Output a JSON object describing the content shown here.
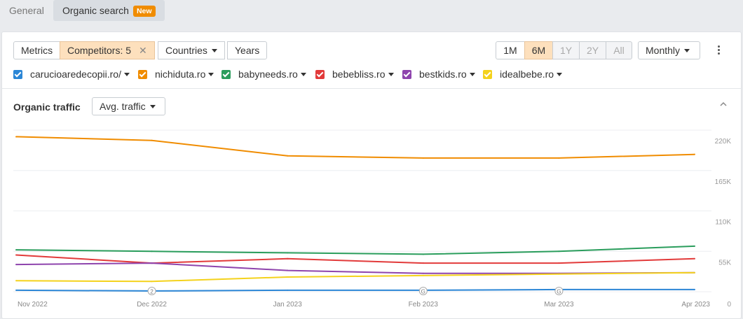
{
  "tabs": {
    "general": "General",
    "organic": "Organic search",
    "new_badge": "New"
  },
  "toolbar": {
    "metrics": "Metrics",
    "competitors": "Competitors: 5",
    "countries": "Countries",
    "years": "Years",
    "periods": [
      "1M",
      "6M",
      "1Y",
      "2Y",
      "All"
    ],
    "active_period": "6M",
    "disabled_periods": [
      "1Y",
      "2Y",
      "All"
    ],
    "granularity": "Monthly"
  },
  "legend": [
    {
      "label": "carucioaredecopii.ro/",
      "color": "#2b86d6"
    },
    {
      "label": "nichiduta.ro",
      "color": "#f08c00"
    },
    {
      "label": "babyneeds.ro",
      "color": "#2a9d5c"
    },
    {
      "label": "bebebliss.ro",
      "color": "#e23a3a"
    },
    {
      "label": "bestkids.ro",
      "color": "#8e44ad"
    },
    {
      "label": "idealbebe.ro",
      "color": "#f4d21c"
    }
  ],
  "section": {
    "title": "Organic traffic",
    "dropdown": "Avg. traffic"
  },
  "chart_data": {
    "type": "line",
    "x": [
      "Nov 2022",
      "Dec 2022",
      "Jan 2023",
      "Feb 2023",
      "Mar 2023",
      "Apr 2023"
    ],
    "yticks": [
      "220K",
      "165K",
      "110K",
      "55K",
      "0"
    ],
    "ylim": [
      0,
      220000
    ],
    "grid": true,
    "legend_placement": "top",
    "markers": [
      {
        "x": "Dec 2022",
        "label": "2"
      },
      {
        "x": "Feb 2023",
        "label": "G"
      },
      {
        "x": "Mar 2023",
        "label": "G"
      }
    ],
    "series": [
      {
        "name": "nichiduta.ro",
        "color": "#f08c00",
        "values": [
          211000,
          206000,
          185000,
          182000,
          182000,
          187000
        ]
      },
      {
        "name": "babyneeds.ro",
        "color": "#2a9d5c",
        "values": [
          57000,
          55000,
          53000,
          51000,
          55000,
          62000
        ]
      },
      {
        "name": "bebebliss.ro",
        "color": "#e23a3a",
        "values": [
          50000,
          39000,
          45000,
          39000,
          39000,
          45000
        ]
      },
      {
        "name": "bestkids.ro",
        "color": "#8e44ad",
        "values": [
          37000,
          39000,
          29000,
          25000,
          25000,
          26000
        ]
      },
      {
        "name": "idealbebe.ro",
        "color": "#f4d21c",
        "values": [
          15000,
          14000,
          20000,
          22000,
          24000,
          26000
        ]
      },
      {
        "name": "carucioaredecopii.ro/",
        "color": "#2b86d6",
        "values": [
          2000,
          1000,
          2000,
          2000,
          3000,
          3000
        ]
      }
    ]
  }
}
